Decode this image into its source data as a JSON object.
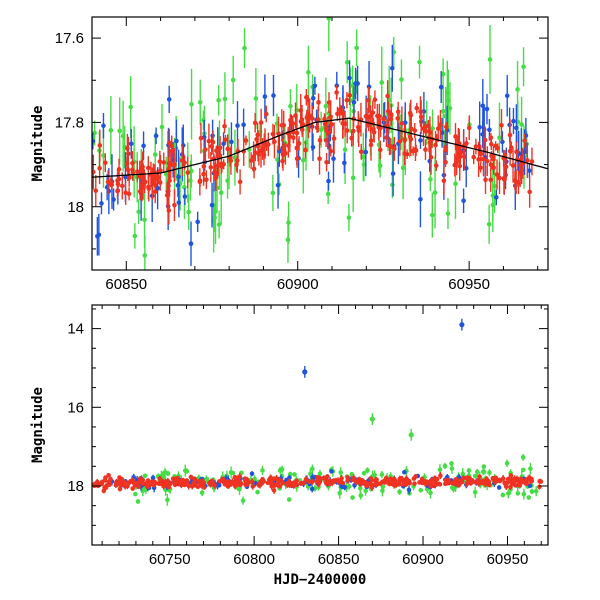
{
  "colors": {
    "green": "#44dd44",
    "blue": "#1f55dd",
    "red": "#ee3322",
    "fit": "#000000"
  },
  "chart_data": [
    {
      "type": "scatter",
      "panel": "top",
      "title": "",
      "xlabel": "",
      "ylabel": "Magnitude",
      "xlim": [
        60840,
        60973
      ],
      "ylim": [
        18.15,
        17.55
      ],
      "y_inverted": true,
      "xticks": [
        60850,
        60900,
        60950
      ],
      "xticklabels": [
        "60850",
        "60900",
        "60950"
      ],
      "yticks": [
        17.6,
        17.8,
        18
      ],
      "yticklabels": [
        "17.6",
        "17.8",
        "18"
      ],
      "series": [
        {
          "name": "green",
          "color": "#44dd44"
        },
        {
          "name": "blue",
          "color": "#1f55dd"
        },
        {
          "name": "red",
          "color": "#ee3322"
        }
      ],
      "model_curve": {
        "name": "fit",
        "x": [
          60840,
          60860,
          60880,
          60895,
          60905,
          60915,
          60925,
          60940,
          60955,
          60973
        ],
        "y": [
          17.93,
          17.92,
          17.88,
          17.83,
          17.8,
          17.79,
          17.81,
          17.84,
          17.87,
          17.91
        ]
      }
    },
    {
      "type": "scatter",
      "panel": "bottom",
      "title": "",
      "xlabel": "HJD−2400000",
      "ylabel": "Magnitude",
      "xlim": [
        60704,
        60974
      ],
      "ylim": [
        19.5,
        13.4
      ],
      "y_inverted": true,
      "xticks": [
        60750,
        60800,
        60850,
        60900,
        60950
      ],
      "xticklabels": [
        "60750",
        "60800",
        "60850",
        "60900",
        "60950"
      ],
      "yticks": [
        14,
        16,
        18
      ],
      "yticklabels": [
        "14",
        "16",
        "18"
      ],
      "series": [
        {
          "name": "green",
          "color": "#44dd44"
        },
        {
          "name": "blue",
          "color": "#1f55dd"
        },
        {
          "name": "red",
          "color": "#ee3322"
        }
      ],
      "notable_points": [
        {
          "series": "blue",
          "x": 60830,
          "y": 15.1
        },
        {
          "series": "blue",
          "x": 60923,
          "y": 13.9
        },
        {
          "series": "green",
          "x": 60870,
          "y": 16.3
        },
        {
          "series": "green",
          "x": 60893,
          "y": 16.7
        }
      ]
    }
  ]
}
